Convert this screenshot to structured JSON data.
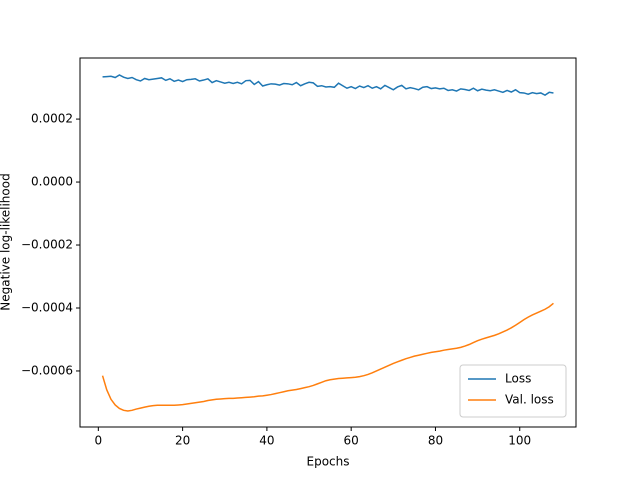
{
  "chart_data": {
    "type": "line",
    "xlabel": "Epochs",
    "ylabel": "Negative log-likelihood",
    "x": [
      1,
      2,
      3,
      4,
      5,
      6,
      7,
      8,
      9,
      10,
      11,
      12,
      13,
      14,
      15,
      16,
      17,
      18,
      19,
      20,
      21,
      22,
      23,
      24,
      25,
      26,
      27,
      28,
      29,
      30,
      31,
      32,
      33,
      34,
      35,
      36,
      37,
      38,
      39,
      40,
      41,
      42,
      43,
      44,
      45,
      46,
      47,
      48,
      49,
      50,
      51,
      52,
      53,
      54,
      55,
      56,
      57,
      58,
      59,
      60,
      61,
      62,
      63,
      64,
      65,
      66,
      67,
      68,
      69,
      70,
      71,
      72,
      73,
      74,
      75,
      76,
      77,
      78,
      79,
      80,
      81,
      82,
      83,
      84,
      85,
      86,
      87,
      88,
      89,
      90,
      91,
      92,
      93,
      94,
      95,
      96,
      97,
      98,
      99,
      100,
      101,
      102,
      103,
      104,
      105,
      106,
      107,
      108
    ],
    "series": [
      {
        "name": "Loss",
        "color": "#1f77b4",
        "values": [
          0.000334,
          0.000335,
          0.000336,
          0.000332,
          0.00034,
          0.000333,
          0.000329,
          0.000332,
          0.000325,
          0.000321,
          0.000329,
          0.000325,
          0.000327,
          0.000329,
          0.000331,
          0.000323,
          0.000328,
          0.00032,
          0.000324,
          0.000319,
          0.000325,
          0.000326,
          0.000328,
          0.000321,
          0.000324,
          0.000328,
          0.000316,
          0.000322,
          0.000318,
          0.000314,
          0.000317,
          0.000313,
          0.000317,
          0.000312,
          0.000322,
          0.000323,
          0.00031,
          0.000319,
          0.000305,
          0.000309,
          0.000312,
          0.000311,
          0.000308,
          0.000313,
          0.000312,
          0.000309,
          0.000316,
          0.000306,
          0.000312,
          0.000317,
          0.000315,
          0.000304,
          0.000306,
          0.000302,
          0.000303,
          0.000301,
          0.000314,
          0.000306,
          0.000298,
          0.000303,
          0.000297,
          0.000305,
          0.0003,
          0.000306,
          0.000298,
          0.000303,
          0.000296,
          0.000307,
          0.0003,
          0.000293,
          0.000302,
          0.000307,
          0.000296,
          0.0003,
          0.000297,
          0.000293,
          0.000301,
          0.000303,
          0.000297,
          0.000299,
          0.000296,
          0.000298,
          0.000291,
          0.000293,
          0.000289,
          0.000296,
          0.000294,
          0.000291,
          0.000298,
          0.00029,
          0.000295,
          0.000292,
          0.00029,
          0.000293,
          0.000289,
          0.000285,
          0.000291,
          0.000286,
          0.000293,
          0.000284,
          0.000283,
          0.000279,
          0.000284,
          0.000281,
          0.000283,
          0.000276,
          0.000285,
          0.000283
        ]
      },
      {
        "name": "Val. loss",
        "color": "#ff7f0e",
        "values": [
          -0.000615,
          -0.00066,
          -0.00069,
          -0.000708,
          -0.000719,
          -0.000725,
          -0.000727,
          -0.000725,
          -0.000721,
          -0.000718,
          -0.000715,
          -0.000712,
          -0.00071,
          -0.000709,
          -0.000709,
          -0.000709,
          -0.000709,
          -0.000709,
          -0.000708,
          -0.000707,
          -0.000705,
          -0.000703,
          -0.000701,
          -0.000699,
          -0.000697,
          -0.000694,
          -0.000692,
          -0.00069,
          -0.000689,
          -0.000688,
          -0.000687,
          -0.000687,
          -0.000686,
          -0.000685,
          -0.000684,
          -0.000683,
          -0.000682,
          -0.00068,
          -0.000679,
          -0.000677,
          -0.000675,
          -0.000672,
          -0.000669,
          -0.000666,
          -0.000663,
          -0.000661,
          -0.000659,
          -0.000656,
          -0.000653,
          -0.00065,
          -0.000646,
          -0.000641,
          -0.000636,
          -0.000631,
          -0.000628,
          -0.000626,
          -0.000624,
          -0.000623,
          -0.000622,
          -0.000621,
          -0.00062,
          -0.000618,
          -0.000615,
          -0.000611,
          -0.000606,
          -0.0006,
          -0.000594,
          -0.000588,
          -0.000582,
          -0.000576,
          -0.000571,
          -0.000566,
          -0.000561,
          -0.000557,
          -0.000553,
          -0.00055,
          -0.000547,
          -0.000544,
          -0.000541,
          -0.000539,
          -0.000537,
          -0.000534,
          -0.000532,
          -0.00053,
          -0.000528,
          -0.000525,
          -0.000521,
          -0.000516,
          -0.00051,
          -0.000504,
          -0.000499,
          -0.000495,
          -0.000491,
          -0.000487,
          -0.000482,
          -0.000476,
          -0.00047,
          -0.000463,
          -0.000455,
          -0.000446,
          -0.000437,
          -0.000429,
          -0.000422,
          -0.000416,
          -0.00041,
          -0.000404,
          -0.000396,
          -0.000385
        ]
      }
    ],
    "xlim": [
      -4.35,
      113.35
    ],
    "xticks": [
      0,
      20,
      40,
      60,
      80,
      100
    ],
    "ylim": [
      -0.000778,
      0.000394
    ],
    "yticks": [
      {
        "value": -0.0006,
        "label": "−0.0006"
      },
      {
        "value": -0.0004,
        "label": "−0.0004"
      },
      {
        "value": -0.0002,
        "label": "−0.0002"
      },
      {
        "value": 0,
        "label": "0.0000"
      },
      0.0002
    ],
    "legend": "lower right"
  }
}
